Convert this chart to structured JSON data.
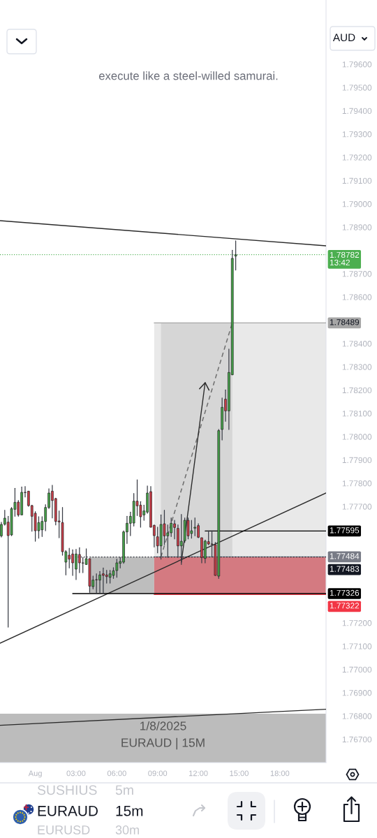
{
  "chart_data": {
    "type": "candlestick",
    "subtitle": "execute like a steel-willed samurai.",
    "ylabel": "AUD",
    "x": [
      -2.5,
      -2.25,
      -2,
      -1.75,
      -1.5,
      -1.25,
      -1,
      -0.75,
      -0.5,
      -0.25,
      0,
      0.25,
      0.5,
      0.75,
      1,
      1.25,
      1.5,
      1.75,
      2,
      2.25,
      2.5,
      2.75,
      3,
      3.25,
      3.5,
      3.75,
      4,
      4.25,
      4.5,
      4.75,
      5,
      5.25,
      5.5,
      5.75,
      6,
      6.25,
      6.5,
      6.75,
      7,
      7.25,
      7.5,
      7.75,
      8,
      8.25,
      8.5,
      8.75,
      9,
      9.25,
      9.5,
      9.75,
      10,
      10.25,
      10.5,
      10.75,
      11,
      11.25,
      11.5,
      11.75,
      12,
      12.25,
      12.5,
      12.75,
      13,
      13.25,
      13.5,
      13.75,
      14,
      14.25,
      14.5,
      14.75
    ],
    "ohlc": [
      [
        1.77574,
        1.77632,
        1.77569,
        1.77623
      ],
      [
        1.77624,
        1.77684,
        1.7762,
        1.7765
      ],
      [
        1.77633,
        1.77658,
        1.77182,
        1.77575
      ],
      [
        1.77578,
        1.77696,
        1.77575,
        1.77691
      ],
      [
        1.77688,
        1.77778,
        1.77658,
        1.77718
      ],
      [
        1.77719,
        1.77726,
        1.77658,
        1.77664
      ],
      [
        1.77664,
        1.77784,
        1.77664,
        1.77761
      ],
      [
        1.77761,
        1.77786,
        1.77741,
        1.7776
      ],
      [
        1.77766,
        1.77766,
        1.77701,
        1.77704
      ],
      [
        1.77704,
        1.77706,
        1.77594,
        1.77658
      ],
      [
        1.77671,
        1.77678,
        1.77551,
        1.77596
      ],
      [
        1.77596,
        1.77656,
        1.77564,
        1.77631
      ],
      [
        1.776,
        1.77656,
        1.77571,
        1.77636
      ],
      [
        1.77636,
        1.77708,
        1.77596,
        1.77696
      ],
      [
        1.77696,
        1.77776,
        1.77691,
        1.77758
      ],
      [
        1.77766,
        1.77791,
        1.77651,
        1.77726
      ],
      [
        1.77734,
        1.77736,
        1.77621,
        1.77636
      ],
      [
        1.77638,
        1.77681,
        1.77566,
        1.77634
      ],
      [
        1.77631,
        1.77696,
        1.77491,
        1.77506
      ],
      [
        1.77461,
        1.77511,
        1.77406,
        1.77506
      ],
      [
        1.77491,
        1.77521,
        1.77436,
        1.77474
      ],
      [
        1.77496,
        1.77514,
        1.77404,
        1.77458
      ],
      [
        1.77431,
        1.77516,
        1.77386,
        1.77496
      ],
      [
        1.77494,
        1.77523,
        1.77416,
        1.77458
      ],
      [
        1.77458,
        1.77481,
        1.77416,
        1.77457
      ],
      [
        1.77451,
        1.77518,
        1.77451,
        1.77476
      ],
      [
        1.77476,
        1.77476,
        1.77331,
        1.77358
      ],
      [
        1.77356,
        1.77401,
        1.77346,
        1.77384
      ],
      [
        1.77386,
        1.77411,
        1.77326,
        1.77385
      ],
      [
        1.77384,
        1.77421,
        1.77326,
        1.77406
      ],
      [
        1.77411,
        1.77436,
        1.77326,
        1.77404
      ],
      [
        1.77406,
        1.77426,
        1.77371,
        1.77399
      ],
      [
        1.77396,
        1.77426,
        1.77371,
        1.77411
      ],
      [
        1.77404,
        1.77437,
        1.77391,
        1.77424
      ],
      [
        1.77425,
        1.77474,
        1.77396,
        1.77458
      ],
      [
        1.77456,
        1.77481,
        1.77436,
        1.77464
      ],
      [
        1.77461,
        1.77596,
        1.77456,
        1.77591
      ],
      [
        1.77591,
        1.77658,
        1.77541,
        1.77628
      ],
      [
        1.77628,
        1.77676,
        1.77575,
        1.77658
      ],
      [
        1.77629,
        1.77756,
        1.77616,
        1.77723
      ],
      [
        1.77723,
        1.77815,
        1.77661,
        1.77703
      ],
      [
        1.77706,
        1.77721,
        1.77611,
        1.77656
      ],
      [
        1.77664,
        1.77706,
        1.77641,
        1.77681
      ],
      [
        1.77676,
        1.77788,
        1.77671,
        1.77758
      ],
      [
        1.77764,
        1.77786,
        1.77611,
        1.77611
      ],
      [
        1.77619,
        1.77621,
        1.77526,
        1.77575
      ],
      [
        1.7757,
        1.77611,
        1.77501,
        1.77531
      ],
      [
        1.77531,
        1.77664,
        1.77474,
        1.77623
      ],
      [
        1.77626,
        1.77684,
        1.77536,
        1.77574
      ],
      [
        1.77574,
        1.77621,
        1.77481,
        1.77587
      ],
      [
        1.77587,
        1.77651,
        1.77571,
        1.77628
      ],
      [
        1.77626,
        1.77641,
        1.77561,
        1.7761
      ],
      [
        1.77606,
        1.77621,
        1.77481,
        1.77531
      ],
      [
        1.77531,
        1.77666,
        1.77451,
        1.77551
      ],
      [
        1.77553,
        1.77651,
        1.77546,
        1.77641
      ],
      [
        1.77641,
        1.77651,
        1.77561,
        1.77574
      ],
      [
        1.77584,
        1.77641,
        1.77564,
        1.77596
      ],
      [
        1.77607,
        1.77651,
        1.77574,
        1.77611
      ],
      [
        1.77618,
        1.77626,
        1.77566,
        1.77568
      ],
      [
        1.77566,
        1.77566,
        1.77458,
        1.77481
      ],
      [
        1.77477,
        1.77556,
        1.77458,
        1.77551
      ],
      [
        1.77549,
        1.77596,
        1.77536,
        1.77539
      ],
      [
        1.77539,
        1.77596,
        1.77484,
        1.77538
      ],
      [
        1.77536,
        1.77546,
        1.77404,
        1.77404
      ],
      [
        1.77401,
        1.78031,
        1.77391,
        1.78026
      ],
      [
        1.78031,
        1.78166,
        1.77986,
        1.78126
      ],
      [
        1.78161,
        1.78201,
        1.78066,
        1.78111
      ],
      [
        1.78111,
        1.78376,
        1.78031,
        1.78276
      ],
      [
        1.78266,
        1.78801,
        1.78266,
        1.78766
      ],
      [
        1.78776,
        1.78841,
        1.78716,
        1.78782
      ]
    ],
    "colors": [
      "#46a34a",
      "#46a34a",
      "#cb3d49",
      "#46a34a",
      "#46a34a",
      "#cb3d49",
      "#46a34a",
      "#cb3d49",
      "#cb3d49",
      "#cb3d49",
      "#cb3d49",
      "#46a34a",
      "#46a34a",
      "#46a34a",
      "#46a34a",
      "#cb3d49",
      "#cb3d49",
      "#cb3d49",
      "#cb3d49",
      "#46a34a",
      "#cb3d49",
      "#cb3d49",
      "#46a34a",
      "#cb3d49",
      "#cb3d49",
      "#46a34a",
      "#cb3d49",
      "#46a34a",
      "#cb3d49",
      "#46a34a",
      "#cb3d49",
      "#cb3d49",
      "#46a34a",
      "#46a34a",
      "#46a34a",
      "#46a34a",
      "#46a34a",
      "#46a34a",
      "#46a34a",
      "#46a34a",
      "#cb3d49",
      "#cb3d49",
      "#46a34a",
      "#46a34a",
      "#cb3d49",
      "#cb3d49",
      "#cb3d49",
      "#46a34a",
      "#cb3d49",
      "#46a34a",
      "#46a34a",
      "#cb3d49",
      "#cb3d49",
      "#46a34a",
      "#46a34a",
      "#cb3d49",
      "#46a34a",
      "#46a34a",
      "#cb3d49",
      "#cb3d49",
      "#46a34a",
      "#cb3d49",
      "#cb3d49",
      "#cb3d49",
      "#46a34a",
      "#46a34a",
      "#cb3d49",
      "#46a34a",
      "#46a34a",
      "#46a34a"
    ],
    "series": [
      {
        "type": "line",
        "x": [
          4.0,
          8.75
        ],
        "values": [
          null,
          null
        ],
        "lower": [
          1.77326,
          1.77326
        ],
        "upper": [
          1.77484,
          1.77484
        ],
        "color": "#bdbdbd"
      },
      {
        "type": "line",
        "x": [
          8.75,
          21.4
        ],
        "values": [
          null,
          null
        ],
        "lower": [
          1.77484,
          1.77484
        ],
        "upper": [
          1.78489,
          1.78489
        ],
        "color": "#e9e9e9"
      },
      {
        "type": "line",
        "x": [
          9.25,
          14.5
        ],
        "values": [
          null,
          null
        ],
        "lower": [
          1.77484,
          1.77484
        ],
        "upper": [
          1.78489,
          1.78489
        ],
        "color": "#d6d6d6"
      },
      {
        "type": "line",
        "x": [
          8.75,
          21.4
        ],
        "values": [
          null,
          null
        ],
        "lower": [
          1.77322,
          1.77322
        ],
        "upper": [
          1.77484,
          1.77484
        ],
        "color": "#d47a81"
      },
      {
        "type": "line",
        "x": [
          8.75,
          21.4
        ],
        "values": [
          1.78489,
          1.78489
        ],
        "value_labels": [
          null,
          "1.78489"
        ],
        "color": "#a6a6a6"
      },
      {
        "type": "line",
        "x": [
          8.75,
          21.4
        ],
        "values": [
          1.77484,
          1.77484
        ],
        "value_labels": [
          null,
          "1.77484"
        ],
        "color": "#787b86"
      },
      {
        "type": "line",
        "x": [
          8.75,
          21.4
        ],
        "values": [
          1.77322,
          1.77322
        ],
        "value_labels": [
          null,
          "1.77322"
        ],
        "color": "#f23645"
      },
      {
        "type": "line",
        "x": [
          -2.6,
          21.4
        ],
        "values": [
          1.78928,
          1.7882
        ],
        "color": "#2a2a2a"
      },
      {
        "type": "line",
        "x": [
          -2.6,
          21.4
        ],
        "values": [
          1.77113,
          1.77758
        ],
        "color": "#2a2a2a"
      },
      {
        "type": "line",
        "x": [
          -2.6,
          21.4
        ],
        "values": [
          1.7676,
          1.76829
        ],
        "color": "#2a2a2a"
      },
      {
        "type": "line",
        "x": [
          12.5,
          21.4
        ],
        "values": [
          1.77595,
          1.77595
        ],
        "value_labels": [
          null,
          "1.77595"
        ],
        "color": "#000000"
      },
      {
        "type": "line",
        "x": [
          2.75,
          21.4
        ],
        "values": [
          1.77326,
          1.77326
        ],
        "value_labels": [
          null,
          "1.77326"
        ],
        "color": "#000000"
      },
      {
        "type": "line",
        "x": [
          2.5,
          21.4
        ],
        "values": [
          1.77483,
          1.77483
        ],
        "value_labels": [
          null,
          "1.77483"
        ],
        "color": "#131722",
        "line_style": "dotted"
      },
      {
        "type": "line",
        "x": [
          9.25,
          14.5
        ],
        "values": [
          1.77484,
          1.78489
        ],
        "color": "#6f6f6f",
        "line_style": "dashed"
      },
      {
        "type": "line",
        "x": [
          10.75,
          12.5
        ],
        "values": [
          1.77461,
          1.78232
        ],
        "color": "#2a2a2a"
      }
    ],
    "ref_lines": [
      {
        "axis": "y",
        "value": 1.78782,
        "label": "1.78782\n13:42",
        "color": "#4caf50",
        "line_style": "dotted"
      }
    ],
    "xlim": [
      -2.6,
      21.4
    ],
    "xticks": [
      {
        "value": 0,
        "label": "Aug"
      },
      {
        "value": 3,
        "label": "03:00"
      },
      {
        "value": 6,
        "label": "06:00"
      },
      {
        "value": 9,
        "label": "09:00"
      },
      {
        "value": 12,
        "label": "12:00"
      },
      {
        "value": 15,
        "label": "15:00"
      },
      {
        "value": 18,
        "label": "18:00"
      }
    ],
    "ylim": [
      1.766,
      1.79876
    ],
    "yticks": [
      {
        "value": 1.796,
        "label": "1.79600"
      },
      {
        "value": 1.795,
        "label": "1.79500"
      },
      {
        "value": 1.794,
        "label": "1.79400"
      },
      {
        "value": 1.793,
        "label": "1.79300"
      },
      {
        "value": 1.792,
        "label": "1.79200"
      },
      {
        "value": 1.791,
        "label": "1.79100"
      },
      {
        "value": 1.79,
        "label": "1.79000"
      },
      {
        "value": 1.789,
        "label": "1.78900"
      },
      {
        "value": 1.787,
        "label": "1.78700"
      },
      {
        "value": 1.786,
        "label": "1.78600"
      },
      {
        "value": 1.784,
        "label": "1.78400"
      },
      {
        "value": 1.783,
        "label": "1.78300"
      },
      {
        "value": 1.782,
        "label": "1.78200"
      },
      {
        "value": 1.781,
        "label": "1.78100"
      },
      {
        "value": 1.78,
        "label": "1.78000"
      },
      {
        "value": 1.779,
        "label": "1.77900"
      },
      {
        "value": 1.778,
        "label": "1.77800"
      },
      {
        "value": 1.777,
        "label": "1.77700"
      },
      {
        "value": 1.772,
        "label": "1.77200"
      },
      {
        "value": 1.771,
        "label": "1.77100"
      },
      {
        "value": 1.77,
        "label": "1.77000"
      },
      {
        "value": 1.769,
        "label": "1.76900"
      },
      {
        "value": 1.768,
        "label": "1.76800"
      },
      {
        "value": 1.767,
        "label": "1.76700"
      }
    ],
    "annotations": [
      "1/8/2025",
      "EURAUD | 15M",
      "SUSHIUS",
      "5m",
      "EURAUD",
      "15m",
      "EURUSD",
      "30m"
    ]
  }
}
